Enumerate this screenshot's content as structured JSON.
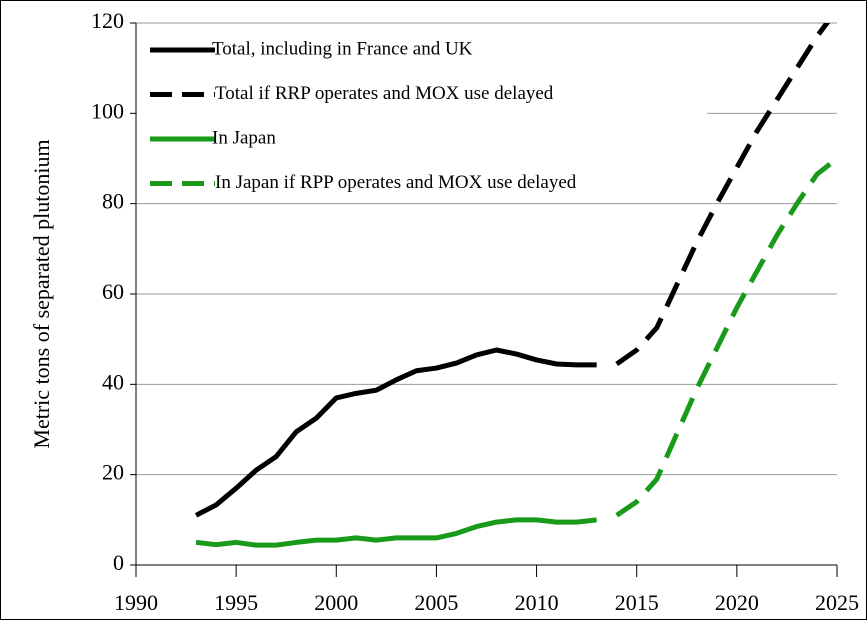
{
  "chart_data": {
    "type": "line",
    "y_label": "Metric tons of separated plutonium",
    "x": [
      1993,
      1994,
      1995,
      1996,
      1997,
      1998,
      1999,
      2000,
      2001,
      2002,
      2003,
      2004,
      2005,
      2006,
      2007,
      2008,
      2009,
      2010,
      2011,
      2012,
      2013,
      2014,
      2015,
      2016,
      2017,
      2018,
      2019,
      2020,
      2021,
      2022,
      2023,
      2024,
      2025
    ],
    "series": [
      {
        "name": "Total, including in France and UK",
        "color": "#000000",
        "dashed": false,
        "values": [
          11,
          13.3,
          17,
          21,
          24,
          29.5,
          32.5,
          37,
          38,
          38.7,
          41,
          43,
          43.6,
          44.7,
          46.5,
          47.6,
          46.7,
          45.4,
          44.5,
          44.3,
          44.3,
          null,
          null,
          null,
          null,
          null,
          null,
          null,
          null,
          null,
          null,
          null,
          null
        ]
      },
      {
        "name": "Total if RRP operates and MOX use delayed",
        "color": "#000000",
        "dashed": true,
        "values": [
          null,
          null,
          null,
          null,
          null,
          null,
          null,
          null,
          null,
          null,
          null,
          null,
          null,
          null,
          null,
          null,
          null,
          null,
          null,
          null,
          null,
          44.5,
          47.6,
          52.5,
          62,
          71.5,
          80,
          88,
          96,
          103,
          110,
          117,
          123
        ]
      },
      {
        "name": "In Japan",
        "color": "#1a9a1a",
        "dashed": false,
        "values": [
          5,
          4.5,
          5,
          4.4,
          4.4,
          5,
          5.5,
          5.5,
          6,
          5.5,
          6,
          6,
          6,
          7,
          8.5,
          9.5,
          10,
          10,
          9.5,
          9.5,
          10,
          null,
          null,
          null,
          null,
          null,
          null,
          null,
          null,
          null,
          null,
          null,
          null
        ]
      },
      {
        "name": "In Japan if RPP operates and MOX use delayed",
        "color": "#1a9a1a",
        "dashed": true,
        "values": [
          null,
          null,
          null,
          null,
          null,
          null,
          null,
          null,
          null,
          null,
          null,
          null,
          null,
          null,
          null,
          null,
          null,
          null,
          null,
          null,
          null,
          11,
          14,
          19,
          29,
          39,
          48,
          57,
          65,
          73,
          80,
          86.5,
          90
        ]
      }
    ],
    "xlim": [
      1990,
      2025
    ],
    "xticks": [
      1990,
      1995,
      2000,
      2005,
      2010,
      2015,
      2020,
      2025
    ],
    "ylim": [
      0,
      120
    ],
    "yticks": [
      0,
      20,
      40,
      60,
      80,
      100,
      120
    ],
    "grid": true,
    "legend": "top-left"
  }
}
